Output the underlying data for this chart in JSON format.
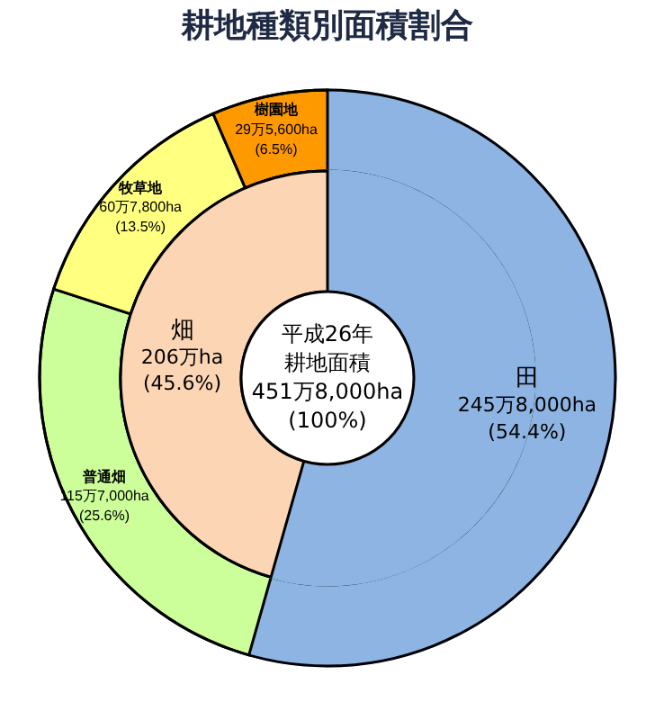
{
  "chart_data": [
    {
      "type": "donut",
      "title": "耕地種類別面積割合",
      "categories": [
        "田",
        "畑"
      ],
      "colors": [
        "#8db4e2",
        "#fcd5b4"
      ],
      "values": [
        54.4,
        45.6
      ],
      "value_labels": [
        "245万8,000ha\n(54.4%)",
        "206万ha\n(45.6%)"
      ],
      "annotations": [
        "平成26年",
        "耕地面積",
        "451万8,000ha",
        "(100%)"
      ],
      "legend": false
    },
    {
      "type": "donut",
      "categories": [
        null,
        "普通畑",
        "牧草地",
        "樹園地"
      ],
      "colors": [
        "#8db4e2",
        "#ccff99",
        "#ffff80",
        "#ff9900"
      ],
      "values": [
        54.4,
        25.6,
        13.5,
        6.5
      ],
      "value_labels": [
        null,
        "115万7,000ha\n(25.6%)",
        "60万7,800ha\n(13.5%)",
        "29万5,600ha\n(6.5%)"
      ],
      "legend": false
    }
  ]
}
